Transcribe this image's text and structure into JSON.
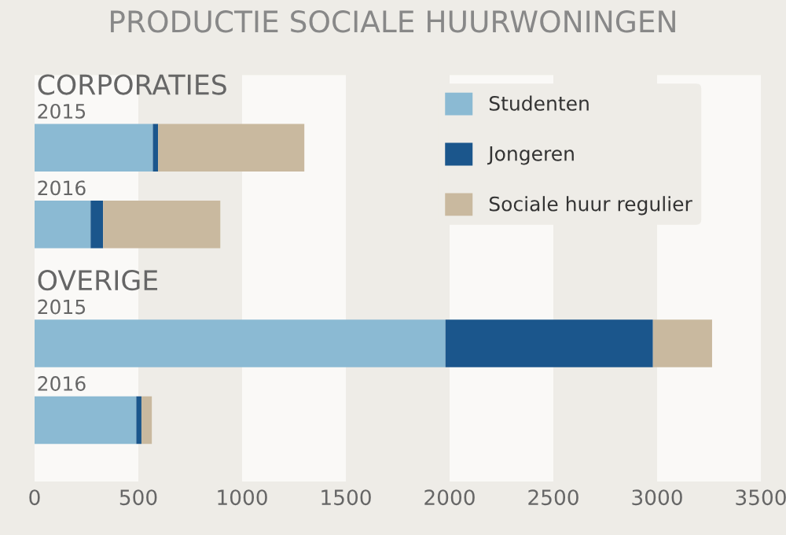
{
  "chart_data": {
    "type": "bar",
    "orientation": "horizontal",
    "stacked": true,
    "title": "PRODUCTIE SOCIALE HUURWONINGEN",
    "categories": [
      "2015",
      "2016",
      "2015",
      "2016"
    ],
    "annotations": [
      "CORPORATIES",
      "OVERIGE"
    ],
    "series": [
      {
        "name": "Studenten",
        "color": "#8bbad3",
        "values": [
          570,
          270,
          1980,
          490
        ]
      },
      {
        "name": "Jongeren",
        "color": "#1b568c",
        "values": [
          25,
          60,
          1000,
          25
        ]
      },
      {
        "name": "Sociale huur regulier",
        "color": "#c9b99f",
        "values": [
          705,
          565,
          285,
          50
        ]
      }
    ],
    "xlim": [
      0,
      3500
    ],
    "xticks": [
      0,
      500,
      1000,
      1500,
      2000,
      2500,
      3000,
      3500
    ],
    "bands": [
      {
        "axis": "x",
        "from": 0,
        "to": 500,
        "color": "#faf9f7"
      },
      {
        "axis": "x",
        "from": 1000,
        "to": 1500,
        "color": "#faf9f7"
      },
      {
        "axis": "x",
        "from": 2000,
        "to": 2500,
        "color": "#faf9f7"
      },
      {
        "axis": "x",
        "from": 3000,
        "to": 3500,
        "color": "#faf9f7"
      }
    ],
    "legend": "top right",
    "grid": false
  }
}
